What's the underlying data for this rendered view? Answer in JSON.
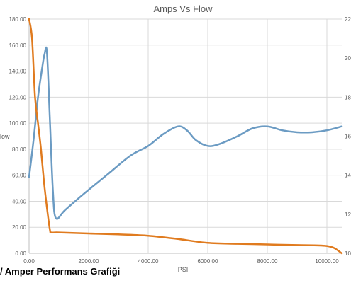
{
  "caption": "/ Amper Performans Grafiği",
  "chart_data": {
    "type": "line",
    "title": "Amps Vs Flow",
    "xlabel": "PSI",
    "ylabel": "low",
    "xlim": [
      0,
      10500
    ],
    "ylim": [
      0,
      180
    ],
    "y2lim": [
      10,
      22
    ],
    "x_ticks": [
      "0.00",
      "2000.00",
      "4000.00",
      "6000.00",
      "8000.00",
      "10000.00"
    ],
    "x_tick_values": [
      0,
      2000,
      4000,
      6000,
      8000,
      10000
    ],
    "y_ticks": [
      "0.00",
      "20.00",
      "40.00",
      "60.00",
      "80.00",
      "100.00",
      "120.00",
      "140.00",
      "160.00",
      "180.00"
    ],
    "y_tick_values": [
      0,
      20,
      40,
      60,
      80,
      100,
      120,
      140,
      160,
      180
    ],
    "y2_ticks": [
      "10",
      "12",
      "14",
      "16",
      "18",
      "20",
      "22"
    ],
    "y2_tick_values": [
      10,
      12,
      14,
      16,
      18,
      20,
      22
    ],
    "grid": true,
    "series": [
      {
        "axis": "right",
        "color": "#6b9bc3",
        "x": [
          0,
          150,
          300,
          450,
          520,
          600,
          700,
          800,
          900,
          1200,
          1800,
          2600,
          3400,
          4000,
          4500,
          5000,
          5300,
          5600,
          6000,
          6400,
          7000,
          7500,
          8000,
          8500,
          9000,
          9500,
          10000,
          10500
        ],
        "y": [
          13.9,
          15.8,
          18.0,
          19.6,
          20.2,
          20.3,
          16.8,
          13.2,
          11.8,
          12.2,
          13.0,
          14.0,
          15.0,
          15.5,
          16.1,
          16.5,
          16.3,
          15.8,
          15.5,
          15.6,
          16.0,
          16.4,
          16.5,
          16.3,
          16.2,
          16.2,
          16.3,
          16.5
        ]
      },
      {
        "axis": "left",
        "color": "#e07b1f",
        "x": [
          0,
          100,
          200,
          300,
          400,
          500,
          600,
          700,
          750,
          1000,
          2000,
          3000,
          4000,
          5000,
          6000,
          7000,
          8000,
          9000,
          9800,
          10200,
          10500
        ],
        "y": [
          180,
          165,
          120,
          100,
          80,
          55,
          35,
          18,
          16,
          16,
          15.2,
          14.5,
          13.5,
          11,
          8,
          7.3,
          6.8,
          6.3,
          6,
          4.5,
          0
        ]
      }
    ]
  }
}
